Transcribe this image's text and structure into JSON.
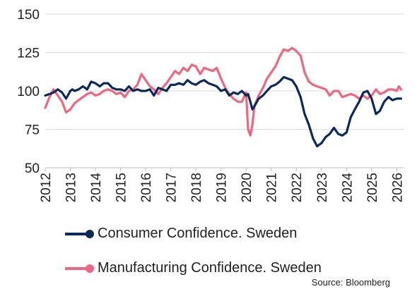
{
  "chart_data": {
    "type": "line",
    "title": "",
    "xlabel": "",
    "ylabel": "",
    "ylim": [
      50,
      150
    ],
    "yticks": [
      50,
      75,
      100,
      125,
      150
    ],
    "xlim": [
      2012,
      2026.3
    ],
    "xticks": [
      "2012",
      "2013",
      "2014",
      "2015",
      "2016",
      "2017",
      "2018",
      "2019",
      "2020",
      "2021",
      "2022",
      "2023",
      "2024",
      "2025",
      "2026"
    ],
    "grid": "horizontal",
    "legend_position": "bottom",
    "source": "Source: Bloomberg",
    "series": [
      {
        "name": "Consumer Confidence. Sweden",
        "color": "#0b2a5b",
        "x": [
          2012.0,
          2012.17,
          2012.33,
          2012.5,
          2012.67,
          2012.83,
          2013.0,
          2013.08,
          2013.17,
          2013.33,
          2013.5,
          2013.67,
          2013.83,
          2014.0,
          2014.17,
          2014.33,
          2014.5,
          2014.67,
          2014.83,
          2015.0,
          2015.17,
          2015.33,
          2015.5,
          2015.67,
          2015.83,
          2016.0,
          2016.17,
          2016.33,
          2016.5,
          2016.67,
          2016.83,
          2017.0,
          2017.17,
          2017.33,
          2017.5,
          2017.67,
          2017.83,
          2018.0,
          2018.17,
          2018.33,
          2018.5,
          2018.67,
          2018.83,
          2019.0,
          2019.17,
          2019.33,
          2019.5,
          2019.67,
          2019.83,
          2020.0,
          2020.08,
          2020.17,
          2020.25,
          2020.33,
          2020.5,
          2020.67,
          2020.83,
          2021.0,
          2021.17,
          2021.33,
          2021.5,
          2021.67,
          2021.83,
          2022.0,
          2022.17,
          2022.33,
          2022.5,
          2022.67,
          2022.83,
          2023.0,
          2023.17,
          2023.33,
          2023.5,
          2023.67,
          2023.83,
          2024.0,
          2024.17,
          2024.33,
          2024.5,
          2024.67,
          2024.83,
          2025.0,
          2025.17,
          2025.33,
          2025.5,
          2025.67,
          2025.83,
          2026.0,
          2026.17
        ],
        "values": [
          97,
          98,
          99,
          101,
          99,
          95,
          100,
          101,
          100,
          101,
          103,
          101,
          106,
          105,
          103,
          105,
          105,
          102,
          101,
          101,
          100,
          103,
          100,
          101,
          100,
          100,
          101,
          97,
          102,
          101,
          100,
          104,
          104,
          105,
          104,
          107,
          105,
          104,
          106,
          107,
          105,
          104,
          103,
          100,
          101,
          97,
          99,
          98,
          100,
          97,
          98,
          93,
          88,
          90,
          95,
          97,
          100,
          103,
          104,
          106,
          109,
          108,
          107,
          103,
          96,
          85,
          78,
          69,
          64,
          66,
          70,
          72,
          76,
          72,
          71,
          73,
          83,
          88,
          93,
          99,
          100,
          95,
          85,
          87,
          93,
          96,
          94,
          95,
          95
        ]
      },
      {
        "name": "Manufacturing Confidence. Sweden",
        "color": "#f0667e",
        "x": [
          2012.0,
          2012.17,
          2012.33,
          2012.5,
          2012.67,
          2012.83,
          2013.0,
          2013.17,
          2013.33,
          2013.5,
          2013.67,
          2013.83,
          2014.0,
          2014.17,
          2014.33,
          2014.5,
          2014.67,
          2014.83,
          2015.0,
          2015.17,
          2015.33,
          2015.5,
          2015.67,
          2015.83,
          2016.0,
          2016.17,
          2016.33,
          2016.5,
          2016.67,
          2016.83,
          2017.0,
          2017.17,
          2017.33,
          2017.5,
          2017.67,
          2017.83,
          2018.0,
          2018.17,
          2018.33,
          2018.5,
          2018.67,
          2018.83,
          2019.0,
          2019.17,
          2019.33,
          2019.5,
          2019.67,
          2019.83,
          2020.0,
          2020.08,
          2020.17,
          2020.25,
          2020.33,
          2020.5,
          2020.67,
          2020.83,
          2021.0,
          2021.17,
          2021.33,
          2021.5,
          2021.67,
          2021.83,
          2022.0,
          2022.17,
          2022.33,
          2022.5,
          2022.67,
          2022.83,
          2023.0,
          2023.17,
          2023.33,
          2023.5,
          2023.67,
          2023.83,
          2024.0,
          2024.17,
          2024.33,
          2024.5,
          2024.67,
          2024.83,
          2025.0,
          2025.17,
          2025.33,
          2025.5,
          2025.67,
          2025.83,
          2026.0,
          2026.08,
          2026.17
        ],
        "values": [
          89,
          96,
          101,
          97,
          93,
          86,
          88,
          92,
          94,
          96,
          98,
          99,
          97,
          98,
          100,
          101,
          100,
          98,
          99,
          96,
          100,
          101,
          104,
          111,
          107,
          103,
          101,
          98,
          102,
          105,
          109,
          113,
          111,
          115,
          113,
          117,
          116,
          111,
          115,
          114,
          113,
          115,
          108,
          102,
          98,
          95,
          93,
          93,
          99,
          75,
          71,
          78,
          90,
          97,
          102,
          108,
          112,
          116,
          122,
          127,
          126,
          128,
          126,
          123,
          112,
          106,
          104,
          103,
          102,
          101,
          97,
          100,
          100,
          96,
          97,
          98,
          97,
          95,
          97,
          95,
          97,
          101,
          98,
          99,
          101,
          101,
          100,
          103,
          101
        ]
      }
    ]
  }
}
